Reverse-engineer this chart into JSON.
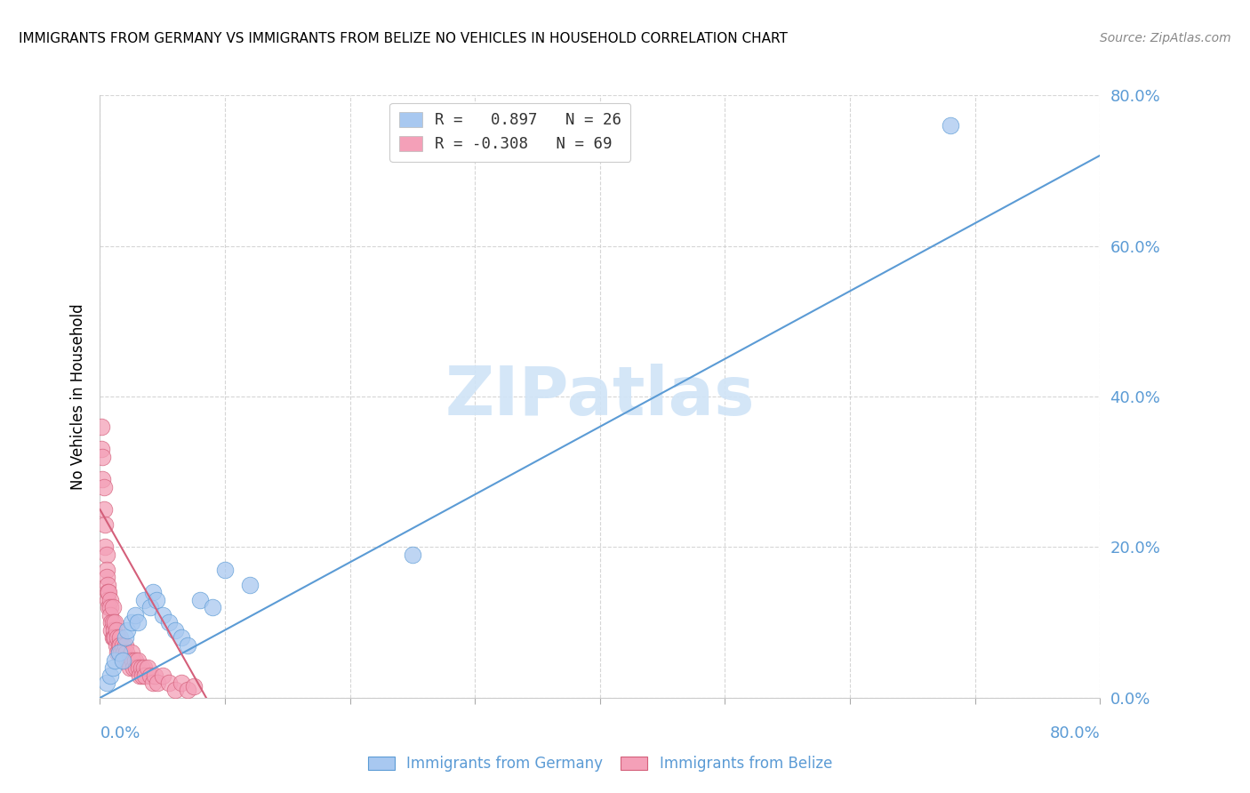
{
  "title": "IMMIGRANTS FROM GERMANY VS IMMIGRANTS FROM BELIZE NO VEHICLES IN HOUSEHOLD CORRELATION CHART",
  "source": "Source: ZipAtlas.com",
  "ylabel": "No Vehicles in Household",
  "xlim": [
    0.0,
    0.8
  ],
  "ylim": [
    0.0,
    0.8
  ],
  "x_ticks": [
    0.0,
    0.1,
    0.2,
    0.3,
    0.4,
    0.5,
    0.6,
    0.7,
    0.8
  ],
  "y_ticks": [
    0.0,
    0.2,
    0.4,
    0.6,
    0.8
  ],
  "legend_r1_prefix": "R = ",
  "legend_r1_val": " 0.897",
  "legend_r1_n": "N = 26",
  "legend_r2_prefix": "R = ",
  "legend_r2_val": "-0.308",
  "legend_r2_n": "N = 69",
  "color_germany": "#a8c8f0",
  "color_belize": "#f4a0b8",
  "line_color_germany": "#5b9bd5",
  "line_color_belize": "#d45f7a",
  "tick_label_color": "#5b9bd5",
  "watermark_color": "#d0e4f7",
  "watermark": "ZIPatlas",
  "germany_x": [
    0.005,
    0.008,
    0.01,
    0.012,
    0.015,
    0.018,
    0.02,
    0.022,
    0.025,
    0.028,
    0.03,
    0.035,
    0.04,
    0.042,
    0.045,
    0.05,
    0.055,
    0.06,
    0.065,
    0.07,
    0.08,
    0.09,
    0.1,
    0.12,
    0.25,
    0.68
  ],
  "germany_y": [
    0.02,
    0.03,
    0.04,
    0.05,
    0.06,
    0.05,
    0.08,
    0.09,
    0.1,
    0.11,
    0.1,
    0.13,
    0.12,
    0.14,
    0.13,
    0.11,
    0.1,
    0.09,
    0.08,
    0.07,
    0.13,
    0.12,
    0.17,
    0.15,
    0.19,
    0.76
  ],
  "belize_x": [
    0.001,
    0.001,
    0.002,
    0.002,
    0.003,
    0.003,
    0.004,
    0.004,
    0.005,
    0.005,
    0.005,
    0.006,
    0.006,
    0.006,
    0.007,
    0.007,
    0.008,
    0.008,
    0.008,
    0.009,
    0.009,
    0.01,
    0.01,
    0.01,
    0.011,
    0.011,
    0.012,
    0.012,
    0.013,
    0.013,
    0.014,
    0.014,
    0.015,
    0.015,
    0.016,
    0.016,
    0.017,
    0.018,
    0.018,
    0.019,
    0.02,
    0.02,
    0.021,
    0.022,
    0.023,
    0.024,
    0.025,
    0.026,
    0.027,
    0.028,
    0.029,
    0.03,
    0.031,
    0.032,
    0.033,
    0.034,
    0.035,
    0.036,
    0.038,
    0.04,
    0.042,
    0.044,
    0.046,
    0.05,
    0.055,
    0.06,
    0.065,
    0.07,
    0.075
  ],
  "belize_y": [
    0.36,
    0.33,
    0.32,
    0.29,
    0.28,
    0.25,
    0.23,
    0.2,
    0.19,
    0.17,
    0.16,
    0.15,
    0.14,
    0.13,
    0.14,
    0.12,
    0.13,
    0.12,
    0.11,
    0.1,
    0.09,
    0.12,
    0.1,
    0.08,
    0.09,
    0.08,
    0.1,
    0.08,
    0.09,
    0.07,
    0.08,
    0.06,
    0.07,
    0.06,
    0.08,
    0.07,
    0.06,
    0.07,
    0.05,
    0.06,
    0.07,
    0.05,
    0.06,
    0.05,
    0.05,
    0.04,
    0.06,
    0.05,
    0.04,
    0.05,
    0.04,
    0.05,
    0.04,
    0.03,
    0.04,
    0.03,
    0.04,
    0.03,
    0.04,
    0.03,
    0.02,
    0.03,
    0.02,
    0.03,
    0.02,
    0.01,
    0.02,
    0.01,
    0.015
  ],
  "blue_line_x": [
    0.0,
    0.8
  ],
  "blue_line_y": [
    0.0,
    0.72
  ],
  "pink_line_x": [
    0.0,
    0.085
  ],
  "pink_line_y": [
    0.25,
    0.0
  ]
}
